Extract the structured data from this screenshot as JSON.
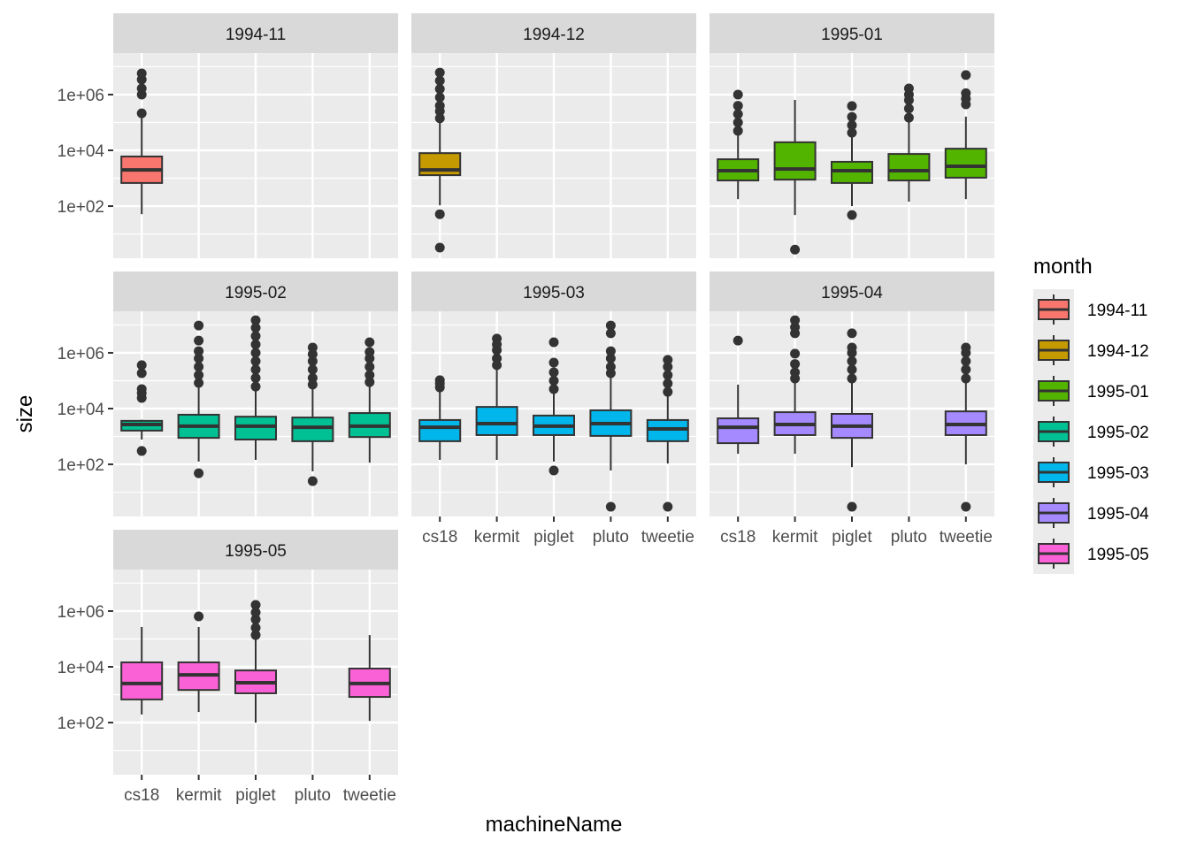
{
  "chart_data": {
    "type": "boxplot",
    "title": "",
    "xlabel": "machineName",
    "ylabel": "size",
    "y_scale": "log10",
    "ylim_log10": [
      0.13,
      7.49
    ],
    "y_ticks": [
      {
        "log10": 2,
        "label": "1e+02"
      },
      {
        "log10": 4,
        "label": "1e+04"
      },
      {
        "log10": 6,
        "label": "1e+06"
      }
    ],
    "y_minor_log10": [
      1,
      3,
      5,
      7
    ],
    "grid": true,
    "categories": [
      "cs18",
      "kermit",
      "piglet",
      "pluto",
      "tweetie"
    ],
    "facet_by": "month",
    "facet_layout": {
      "ncol": 3,
      "nrow": 3
    },
    "legend": {
      "title": "month",
      "placement": "right",
      "entries": [
        {
          "label": "1994-11",
          "color": "#F8766D"
        },
        {
          "label": "1994-12",
          "color": "#C49A00"
        },
        {
          "label": "1995-01",
          "color": "#53B400"
        },
        {
          "label": "1995-02",
          "color": "#00C094"
        },
        {
          "label": "1995-03",
          "color": "#00B6EB"
        },
        {
          "label": "1995-04",
          "color": "#A58AFF"
        },
        {
          "label": "1995-05",
          "color": "#FB61D7"
        }
      ]
    },
    "facets": [
      {
        "month": "1994-11",
        "color": "#F8766D",
        "boxes": [
          {
            "x": "cs18",
            "q1": 2.83,
            "median": 3.3,
            "q3": 3.78,
            "whisker_low": 1.71,
            "whisker_high": 5.27,
            "outliers": [
              5.33,
              6.0,
              6.22,
              6.54,
              6.76
            ]
          }
        ]
      },
      {
        "month": "1994-12",
        "color": "#C49A00",
        "boxes": [
          {
            "x": "cs18",
            "q1": 3.11,
            "median": 3.3,
            "q3": 3.9,
            "whisker_low": 2.03,
            "whisker_high": 5.05,
            "outliers": [
              5.15,
              5.4,
              5.6,
              5.9,
              6.2,
              6.5,
              6.79,
              1.71,
              0.51
            ]
          }
        ]
      },
      {
        "month": "1995-01",
        "color": "#53B400",
        "boxes": [
          {
            "x": "cs18",
            "q1": 2.92,
            "median": 3.27,
            "q3": 3.68,
            "whisker_low": 2.25,
            "whisker_high": 4.63,
            "outliers": [
              4.7,
              5.0,
              5.3,
              5.6,
              6.0
            ]
          },
          {
            "x": "kermit",
            "q1": 2.95,
            "median": 3.33,
            "q3": 4.29,
            "whisker_low": 1.68,
            "whisker_high": 5.81,
            "outliers": [
              0.44
            ]
          },
          {
            "x": "piglet",
            "q1": 2.83,
            "median": 3.27,
            "q3": 3.59,
            "whisker_low": 2.0,
            "whisker_high": 4.6,
            "outliers": [
              4.63,
              4.9,
              5.2,
              5.59,
              1.68
            ]
          },
          {
            "x": "pluto",
            "q1": 2.92,
            "median": 3.27,
            "q3": 3.87,
            "whisker_low": 2.16,
            "whisker_high": 5.1,
            "outliers": [
              5.17,
              5.5,
              5.8,
              6.0,
              6.22
            ]
          },
          {
            "x": "tweetie",
            "q1": 3.02,
            "median": 3.43,
            "q3": 4.06,
            "whisker_low": 2.25,
            "whisker_high": 5.21,
            "outliers": [
              5.65,
              5.85,
              6.05,
              6.7
            ]
          }
        ]
      },
      {
        "month": "1995-02",
        "color": "#00C094",
        "boxes": [
          {
            "x": "cs18",
            "q1": 3.21,
            "median": 3.43,
            "q3": 3.56,
            "whisker_low": 2.89,
            "whisker_high": 3.6,
            "outliers": [
              4.38,
              4.55,
              4.7,
              5.27,
              5.56,
              2.48
            ]
          },
          {
            "x": "kermit",
            "q1": 2.95,
            "median": 3.37,
            "q3": 3.78,
            "whisker_low": 2.1,
            "whisker_high": 4.9,
            "outliers": [
              4.92,
              5.2,
              5.5,
              5.8,
              6.06,
              6.44,
              6.98,
              1.68
            ]
          },
          {
            "x": "piglet",
            "q1": 2.89,
            "median": 3.37,
            "q3": 3.71,
            "whisker_low": 2.16,
            "whisker_high": 4.75,
            "outliers": [
              4.79,
              5.1,
              5.4,
              5.7,
              6.0,
              6.3,
              6.6,
              6.9,
              7.17
            ]
          },
          {
            "x": "pluto",
            "q1": 2.83,
            "median": 3.33,
            "q3": 3.68,
            "whisker_low": 1.75,
            "whisker_high": 4.85,
            "outliers": [
              4.86,
              5.1,
              5.4,
              5.7,
              5.95,
              6.19,
              1.4
            ]
          },
          {
            "x": "tweetie",
            "q1": 2.98,
            "median": 3.37,
            "q3": 3.84,
            "whisker_low": 2.06,
            "whisker_high": 4.9,
            "outliers": [
              4.95,
              5.2,
              5.5,
              5.8,
              6.03,
              6.38
            ]
          }
        ]
      },
      {
        "month": "1995-03",
        "color": "#00B6EB",
        "boxes": [
          {
            "x": "cs18",
            "q1": 2.83,
            "median": 3.33,
            "q3": 3.59,
            "whisker_low": 2.16,
            "whisker_high": 4.7,
            "outliers": [
              4.76,
              4.9,
              5.02
            ]
          },
          {
            "x": "kermit",
            "q1": 3.05,
            "median": 3.46,
            "q3": 4.06,
            "whisker_low": 2.16,
            "whisker_high": 5.5,
            "outliers": [
              5.56,
              5.8,
              6.1,
              6.3,
              6.51
            ]
          },
          {
            "x": "piglet",
            "q1": 3.05,
            "median": 3.37,
            "q3": 3.75,
            "whisker_low": 2.1,
            "whisker_high": 4.65,
            "outliers": [
              4.7,
              5.0,
              5.3,
              5.65,
              6.38,
              1.78
            ]
          },
          {
            "x": "pluto",
            "q1": 3.02,
            "median": 3.46,
            "q3": 3.94,
            "whisker_low": 1.78,
            "whisker_high": 5.2,
            "outliers": [
              5.27,
              5.5,
              5.8,
              6.06,
              6.7,
              6.98,
              0.48
            ]
          },
          {
            "x": "tweetie",
            "q1": 2.83,
            "median": 3.27,
            "q3": 3.59,
            "whisker_low": 2.03,
            "whisker_high": 4.55,
            "outliers": [
              4.6,
              4.9,
              5.2,
              5.5,
              5.75,
              0.48
            ]
          }
        ]
      },
      {
        "month": "1995-04",
        "color": "#A58AFF",
        "boxes": [
          {
            "x": "cs18",
            "q1": 2.76,
            "median": 3.33,
            "q3": 3.65,
            "whisker_low": 2.38,
            "whisker_high": 4.86,
            "outliers": [
              6.44
            ]
          },
          {
            "x": "kermit",
            "q1": 3.05,
            "median": 3.43,
            "q3": 3.87,
            "whisker_low": 2.38,
            "whisker_high": 5.0,
            "outliers": [
              5.08,
              5.3,
              5.6,
              5.97,
              6.7,
              6.92,
              7.17
            ]
          },
          {
            "x": "piglet",
            "q1": 2.95,
            "median": 3.37,
            "q3": 3.81,
            "whisker_low": 1.9,
            "whisker_high": 5.0,
            "outliers": [
              5.08,
              5.4,
              5.7,
              6.0,
              6.19,
              6.7,
              0.48
            ]
          },
          {
            "x": "tweetie",
            "q1": 3.05,
            "median": 3.43,
            "q3": 3.9,
            "whisker_low": 2.0,
            "whisker_high": 5.0,
            "outliers": [
              5.08,
              5.4,
              5.7,
              6.0,
              6.19,
              0.48
            ]
          }
        ]
      },
      {
        "month": "1995-05",
        "color": "#FB61D7",
        "boxes": [
          {
            "x": "cs18",
            "q1": 2.83,
            "median": 3.4,
            "q3": 4.16,
            "whisker_low": 2.29,
            "whisker_high": 5.43,
            "outliers": []
          },
          {
            "x": "kermit",
            "q1": 3.17,
            "median": 3.71,
            "q3": 4.16,
            "whisker_low": 2.38,
            "whisker_high": 5.43,
            "outliers": [
              5.81
            ]
          },
          {
            "x": "piglet",
            "q1": 3.05,
            "median": 3.43,
            "q3": 3.87,
            "whisker_low": 2.0,
            "whisker_high": 5.1,
            "outliers": [
              5.14,
              5.4,
              5.7,
              5.95,
              6.22
            ]
          },
          {
            "x": "tweetie",
            "q1": 2.92,
            "median": 3.4,
            "q3": 3.94,
            "whisker_low": 2.06,
            "whisker_high": 5.14,
            "outliers": []
          }
        ]
      }
    ]
  }
}
